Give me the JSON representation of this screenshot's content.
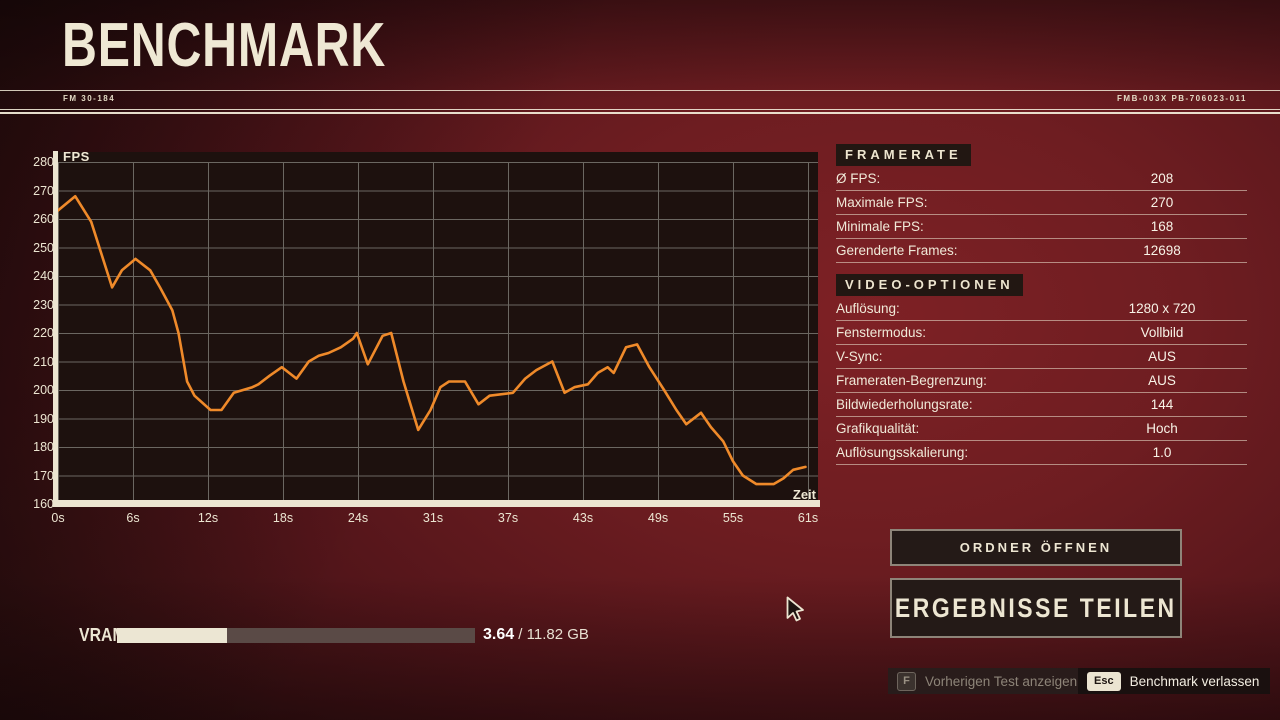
{
  "header": {
    "title": "BENCHMARK",
    "doc_code_left": "FM 30-184",
    "doc_code_right": "FMB-003X PB-706023-011"
  },
  "chart_data": {
    "type": "line",
    "ylabel": "FPS",
    "xlabel": "Zeit",
    "ylim": [
      160,
      280
    ],
    "xlim": [
      0,
      61
    ],
    "y_ticks": [
      280,
      270,
      260,
      250,
      240,
      230,
      220,
      210,
      200,
      190,
      180,
      170,
      160
    ],
    "x_ticks": [
      "0s",
      "6s",
      "12s",
      "18s",
      "24s",
      "31s",
      "37s",
      "43s",
      "49s",
      "55s",
      "61s"
    ],
    "grid": true,
    "series": [
      {
        "name": "FPS",
        "color": "#EF8A2A",
        "points": [
          [
            0,
            263
          ],
          [
            1.4,
            268
          ],
          [
            2.7,
            259
          ],
          [
            4.4,
            236
          ],
          [
            5.2,
            242
          ],
          [
            6.3,
            246
          ],
          [
            7.5,
            242
          ],
          [
            8.3,
            236
          ],
          [
            9.3,
            228
          ],
          [
            9.8,
            220
          ],
          [
            10.5,
            203
          ],
          [
            11.1,
            198
          ],
          [
            12.4,
            193
          ],
          [
            13.3,
            193
          ],
          [
            14.3,
            199
          ],
          [
            15.8,
            201
          ],
          [
            16.3,
            202
          ],
          [
            17.2,
            205
          ],
          [
            18.2,
            208
          ],
          [
            19.4,
            204
          ],
          [
            20.4,
            210
          ],
          [
            21.2,
            212
          ],
          [
            22,
            213
          ],
          [
            23,
            215
          ],
          [
            24,
            218
          ],
          [
            24.3,
            220
          ],
          [
            25.2,
            209
          ],
          [
            26.4,
            219
          ],
          [
            27.1,
            220
          ],
          [
            28.1,
            203
          ],
          [
            29.3,
            186
          ],
          [
            30.3,
            193
          ],
          [
            31.1,
            201
          ],
          [
            31.8,
            203
          ],
          [
            33.1,
            203
          ],
          [
            34.2,
            195
          ],
          [
            35.1,
            198
          ],
          [
            37,
            199
          ],
          [
            38,
            204
          ],
          [
            38.9,
            207
          ],
          [
            40.2,
            210
          ],
          [
            41.2,
            199
          ],
          [
            42,
            201
          ],
          [
            43.1,
            202
          ],
          [
            43.9,
            206
          ],
          [
            44.7,
            208
          ],
          [
            45.2,
            206
          ],
          [
            46.2,
            215
          ],
          [
            47.1,
            216
          ],
          [
            48.1,
            208
          ],
          [
            49.3,
            200
          ],
          [
            50.3,
            193
          ],
          [
            51.1,
            188
          ],
          [
            52.3,
            192
          ],
          [
            53.1,
            187
          ],
          [
            54.1,
            182
          ],
          [
            54.9,
            175
          ],
          [
            55.7,
            170
          ],
          [
            56.8,
            167
          ],
          [
            58.2,
            167
          ],
          [
            59,
            169
          ],
          [
            59.8,
            172
          ],
          [
            60.8,
            173
          ]
        ]
      }
    ]
  },
  "framerate_panel": {
    "title": "FRAMERATE",
    "rows": [
      {
        "label": "Ø FPS:",
        "value": "208"
      },
      {
        "label": "Maximale FPS:",
        "value": "270"
      },
      {
        "label": "Minimale FPS:",
        "value": "168"
      },
      {
        "label": "Gerenderte Frames:",
        "value": "12698"
      }
    ]
  },
  "video_panel": {
    "title": "VIDEO-OPTIONEN",
    "rows": [
      {
        "label": "Auflösung:",
        "value": "1280 x 720"
      },
      {
        "label": "Fenstermodus:",
        "value": "Vollbild"
      },
      {
        "label": "V-Sync:",
        "value": "AUS"
      },
      {
        "label": "Frameraten-Begrenzung:",
        "value": "AUS"
      },
      {
        "label": "Bildwiederholungsrate:",
        "value": "144"
      },
      {
        "label": "Grafikqualität:",
        "value": "Hoch"
      },
      {
        "label": "Auflösungsskalierung:",
        "value": "1.0"
      }
    ]
  },
  "buttons": {
    "open_folder": "ORDNER ÖFFNEN",
    "share_results": "ERGEBNISSE TEILEN"
  },
  "vram": {
    "label": "VRAM",
    "used": "3.64",
    "separator": " / ",
    "total": "11.82 GB",
    "fraction": 0.308,
    "fill_color": "#ECE6D3",
    "track_color": "#5A4A46"
  },
  "hints": {
    "previous_test": {
      "key": "F",
      "label": "Vorherigen Test anzeigen"
    },
    "exit_benchmark": {
      "key": "Esc",
      "label": "Benchmark verlassen"
    }
  },
  "colors": {
    "cream": "#EDE6D2",
    "accent_orange": "#EF8A2A",
    "background_red": "#6E1D21",
    "plot_background": "#1D110E",
    "grid_line": "#6B6761"
  }
}
